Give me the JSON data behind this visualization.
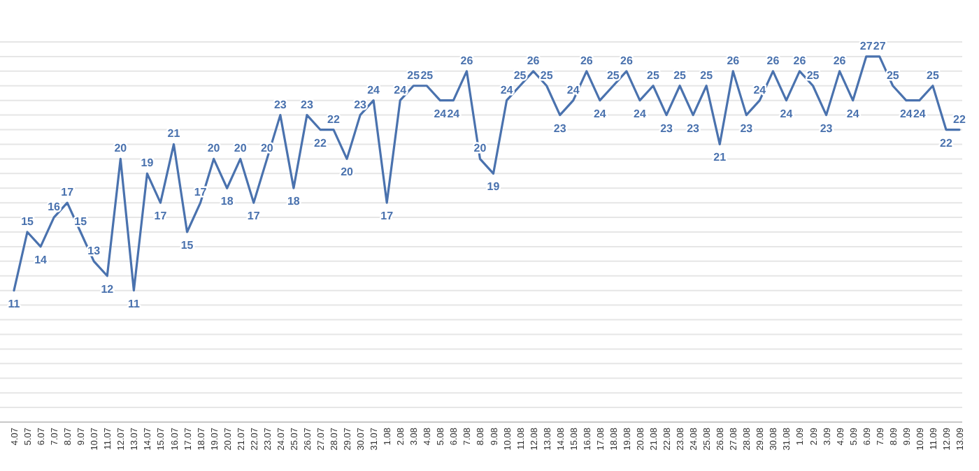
{
  "chart_data": {
    "type": "line",
    "categories": [
      "4.07",
      "5.07",
      "6.07",
      "7.07",
      "8.07",
      "9.07",
      "10.07",
      "11.07",
      "12.07",
      "13.07",
      "14.07",
      "15.07",
      "16.07",
      "17.07",
      "18.07",
      "19.07",
      "20.07",
      "21.07",
      "22.07",
      "23.07",
      "24.07",
      "25.07",
      "26.07",
      "27.07",
      "28.07",
      "29.07",
      "30.07",
      "31.07",
      "1.08",
      "2.08",
      "3.08",
      "4.08",
      "5.08",
      "6.08",
      "7.08",
      "8.08",
      "9.08",
      "10.08",
      "11.08",
      "12.08",
      "13.08",
      "14.08",
      "15.08",
      "16.08",
      "17.08",
      "18.08",
      "19.08",
      "20.08",
      "21.08",
      "22.08",
      "23.08",
      "24.08",
      "25.08",
      "26.08",
      "27.08",
      "28.08",
      "29.08",
      "30.08",
      "31.08",
      "1.09",
      "2.09",
      "3.09",
      "4.09",
      "5.09",
      "6.09",
      "7.09",
      "8.09",
      "9.09",
      "10.09",
      "11.09",
      "12.09",
      "13.09"
    ],
    "series": [
      {
        "color": "#4a72ae",
        "values": [
          11,
          15,
          14,
          16,
          17,
          15,
          13,
          12,
          20,
          11,
          19,
          17,
          21,
          15,
          17,
          20,
          18,
          20,
          17,
          20,
          23,
          18,
          23,
          22,
          22,
          20,
          23,
          24,
          17,
          24,
          25,
          25,
          24,
          24,
          26,
          20,
          19,
          24,
          25,
          26,
          25,
          23,
          24,
          26,
          24,
          25,
          26,
          24,
          25,
          23,
          25,
          23,
          25,
          21,
          26,
          23,
          24,
          26,
          24,
          26,
          25,
          23,
          26,
          24,
          27,
          27,
          25,
          24,
          24,
          25,
          22,
          22
        ]
      }
    ],
    "ylim": [
      2,
      28
    ],
    "yticks": [
      {
        "value": 2,
        "label": null
      },
      {
        "value": 3,
        "label": null
      },
      {
        "value": 4,
        "label": null
      },
      {
        "value": 5,
        "label": null
      },
      {
        "value": 6,
        "label": null
      },
      {
        "value": 7,
        "label": null
      },
      {
        "value": 8,
        "label": null
      },
      {
        "value": 9,
        "label": null
      },
      {
        "value": 10,
        "label": null
      },
      {
        "value": 11,
        "label": null
      },
      {
        "value": 12,
        "label": null
      },
      {
        "value": 13,
        "label": null
      },
      {
        "value": 14,
        "label": null
      },
      {
        "value": 15,
        "label": null
      },
      {
        "value": 16,
        "label": null
      },
      {
        "value": 17,
        "label": null
      },
      {
        "value": 18,
        "label": null
      },
      {
        "value": 19,
        "label": null
      },
      {
        "value": 20,
        "label": null
      },
      {
        "value": 21,
        "label": null
      },
      {
        "value": 22,
        "label": null
      },
      {
        "value": 23,
        "label": null
      },
      {
        "value": 24,
        "label": null
      },
      {
        "value": 25,
        "label": null
      },
      {
        "value": 26,
        "label": null
      },
      {
        "value": 27,
        "label": null
      },
      {
        "value": 28,
        "label": null
      }
    ],
    "tick_labels": "x",
    "grid": "y",
    "data_labels": true,
    "marker": "none",
    "line_style": "solid"
  }
}
